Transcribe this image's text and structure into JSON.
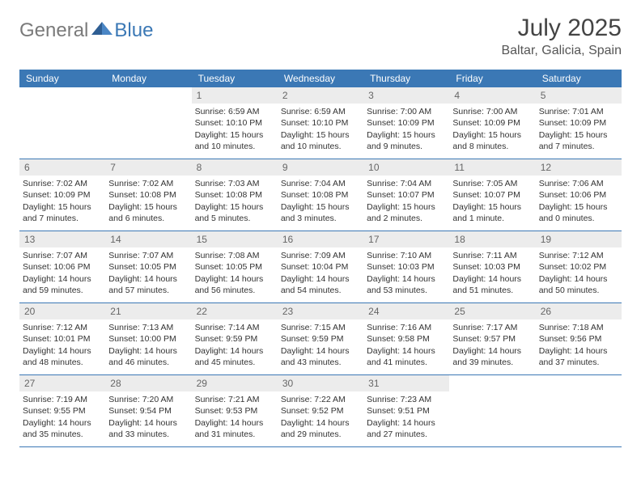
{
  "logo": {
    "text1": "General",
    "text2": "Blue"
  },
  "title": "July 2025",
  "location": "Baltar, Galicia, Spain",
  "colors": {
    "header_bg": "#3b78b5",
    "header_text": "#ffffff",
    "daynum_bg": "#ececec",
    "daynum_text": "#666666",
    "divider": "#3b78b5",
    "logo_gray": "#7a7a7a",
    "logo_blue": "#3b78b5"
  },
  "day_names": [
    "Sunday",
    "Monday",
    "Tuesday",
    "Wednesday",
    "Thursday",
    "Friday",
    "Saturday"
  ],
  "weeks": [
    [
      {
        "n": "",
        "sr": "",
        "ss": "",
        "dl": ""
      },
      {
        "n": "",
        "sr": "",
        "ss": "",
        "dl": ""
      },
      {
        "n": "1",
        "sr": "Sunrise: 6:59 AM",
        "ss": "Sunset: 10:10 PM",
        "dl": "Daylight: 15 hours and 10 minutes."
      },
      {
        "n": "2",
        "sr": "Sunrise: 6:59 AM",
        "ss": "Sunset: 10:10 PM",
        "dl": "Daylight: 15 hours and 10 minutes."
      },
      {
        "n": "3",
        "sr": "Sunrise: 7:00 AM",
        "ss": "Sunset: 10:09 PM",
        "dl": "Daylight: 15 hours and 9 minutes."
      },
      {
        "n": "4",
        "sr": "Sunrise: 7:00 AM",
        "ss": "Sunset: 10:09 PM",
        "dl": "Daylight: 15 hours and 8 minutes."
      },
      {
        "n": "5",
        "sr": "Sunrise: 7:01 AM",
        "ss": "Sunset: 10:09 PM",
        "dl": "Daylight: 15 hours and 7 minutes."
      }
    ],
    [
      {
        "n": "6",
        "sr": "Sunrise: 7:02 AM",
        "ss": "Sunset: 10:09 PM",
        "dl": "Daylight: 15 hours and 7 minutes."
      },
      {
        "n": "7",
        "sr": "Sunrise: 7:02 AM",
        "ss": "Sunset: 10:08 PM",
        "dl": "Daylight: 15 hours and 6 minutes."
      },
      {
        "n": "8",
        "sr": "Sunrise: 7:03 AM",
        "ss": "Sunset: 10:08 PM",
        "dl": "Daylight: 15 hours and 5 minutes."
      },
      {
        "n": "9",
        "sr": "Sunrise: 7:04 AM",
        "ss": "Sunset: 10:08 PM",
        "dl": "Daylight: 15 hours and 3 minutes."
      },
      {
        "n": "10",
        "sr": "Sunrise: 7:04 AM",
        "ss": "Sunset: 10:07 PM",
        "dl": "Daylight: 15 hours and 2 minutes."
      },
      {
        "n": "11",
        "sr": "Sunrise: 7:05 AM",
        "ss": "Sunset: 10:07 PM",
        "dl": "Daylight: 15 hours and 1 minute."
      },
      {
        "n": "12",
        "sr": "Sunrise: 7:06 AM",
        "ss": "Sunset: 10:06 PM",
        "dl": "Daylight: 15 hours and 0 minutes."
      }
    ],
    [
      {
        "n": "13",
        "sr": "Sunrise: 7:07 AM",
        "ss": "Sunset: 10:06 PM",
        "dl": "Daylight: 14 hours and 59 minutes."
      },
      {
        "n": "14",
        "sr": "Sunrise: 7:07 AM",
        "ss": "Sunset: 10:05 PM",
        "dl": "Daylight: 14 hours and 57 minutes."
      },
      {
        "n": "15",
        "sr": "Sunrise: 7:08 AM",
        "ss": "Sunset: 10:05 PM",
        "dl": "Daylight: 14 hours and 56 minutes."
      },
      {
        "n": "16",
        "sr": "Sunrise: 7:09 AM",
        "ss": "Sunset: 10:04 PM",
        "dl": "Daylight: 14 hours and 54 minutes."
      },
      {
        "n": "17",
        "sr": "Sunrise: 7:10 AM",
        "ss": "Sunset: 10:03 PM",
        "dl": "Daylight: 14 hours and 53 minutes."
      },
      {
        "n": "18",
        "sr": "Sunrise: 7:11 AM",
        "ss": "Sunset: 10:03 PM",
        "dl": "Daylight: 14 hours and 51 minutes."
      },
      {
        "n": "19",
        "sr": "Sunrise: 7:12 AM",
        "ss": "Sunset: 10:02 PM",
        "dl": "Daylight: 14 hours and 50 minutes."
      }
    ],
    [
      {
        "n": "20",
        "sr": "Sunrise: 7:12 AM",
        "ss": "Sunset: 10:01 PM",
        "dl": "Daylight: 14 hours and 48 minutes."
      },
      {
        "n": "21",
        "sr": "Sunrise: 7:13 AM",
        "ss": "Sunset: 10:00 PM",
        "dl": "Daylight: 14 hours and 46 minutes."
      },
      {
        "n": "22",
        "sr": "Sunrise: 7:14 AM",
        "ss": "Sunset: 9:59 PM",
        "dl": "Daylight: 14 hours and 45 minutes."
      },
      {
        "n": "23",
        "sr": "Sunrise: 7:15 AM",
        "ss": "Sunset: 9:59 PM",
        "dl": "Daylight: 14 hours and 43 minutes."
      },
      {
        "n": "24",
        "sr": "Sunrise: 7:16 AM",
        "ss": "Sunset: 9:58 PM",
        "dl": "Daylight: 14 hours and 41 minutes."
      },
      {
        "n": "25",
        "sr": "Sunrise: 7:17 AM",
        "ss": "Sunset: 9:57 PM",
        "dl": "Daylight: 14 hours and 39 minutes."
      },
      {
        "n": "26",
        "sr": "Sunrise: 7:18 AM",
        "ss": "Sunset: 9:56 PM",
        "dl": "Daylight: 14 hours and 37 minutes."
      }
    ],
    [
      {
        "n": "27",
        "sr": "Sunrise: 7:19 AM",
        "ss": "Sunset: 9:55 PM",
        "dl": "Daylight: 14 hours and 35 minutes."
      },
      {
        "n": "28",
        "sr": "Sunrise: 7:20 AM",
        "ss": "Sunset: 9:54 PM",
        "dl": "Daylight: 14 hours and 33 minutes."
      },
      {
        "n": "29",
        "sr": "Sunrise: 7:21 AM",
        "ss": "Sunset: 9:53 PM",
        "dl": "Daylight: 14 hours and 31 minutes."
      },
      {
        "n": "30",
        "sr": "Sunrise: 7:22 AM",
        "ss": "Sunset: 9:52 PM",
        "dl": "Daylight: 14 hours and 29 minutes."
      },
      {
        "n": "31",
        "sr": "Sunrise: 7:23 AM",
        "ss": "Sunset: 9:51 PM",
        "dl": "Daylight: 14 hours and 27 minutes."
      },
      {
        "n": "",
        "sr": "",
        "ss": "",
        "dl": ""
      },
      {
        "n": "",
        "sr": "",
        "ss": "",
        "dl": ""
      }
    ]
  ]
}
